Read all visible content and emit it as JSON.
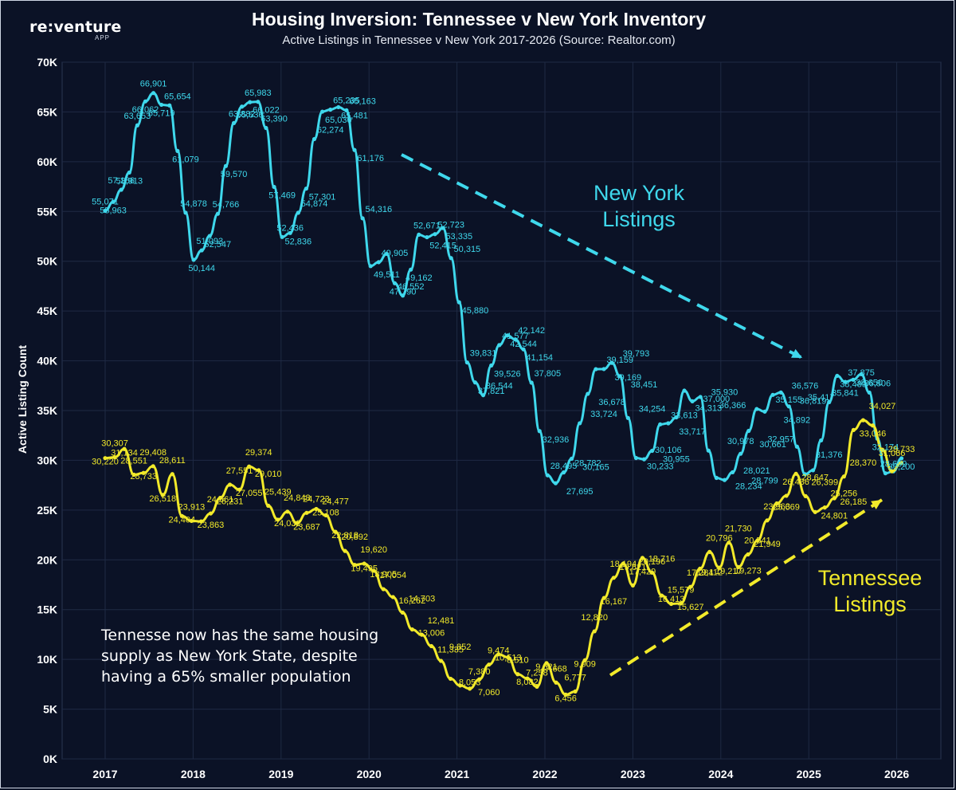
{
  "header": {
    "logo": "re:venture",
    "logo_sub": "APP",
    "title": "Housing Inversion: Tennessee v New York Inventory",
    "subtitle": "Active Listings in Tennessee v New York 2017-2026 (Source: Realtor.com)"
  },
  "annotations": {
    "ny_label_1": "New York",
    "ny_label_2": "Listings",
    "tn_label_1": "Tennessee",
    "tn_label_2": "Listings",
    "note": "Tennesse now has the same housing supply as New York State, despite having a 65% smaller population"
  },
  "colors": {
    "background": "#0b1226",
    "new_york": "#3fd8ec",
    "tennessee": "#f2ea2a",
    "grid": "#1f2a44"
  },
  "chart_data": {
    "type": "line",
    "title": "Housing Inversion: Tennessee v New York Inventory",
    "subtitle": "Active Listings in Tennessee v New York 2017-2026 (Source: Realtor.com)",
    "ylabel": "Active Listing Count",
    "xlabel": "",
    "ylim": [
      0,
      70000
    ],
    "yticks": [
      "0K",
      "5K",
      "10K",
      "15K",
      "20K",
      "25K",
      "30K",
      "35K",
      "40K",
      "45K",
      "50K",
      "55K",
      "60K",
      "65K",
      "70K"
    ],
    "xticks": [
      "2017",
      "2018",
      "2019",
      "2020",
      "2021",
      "2022",
      "2023",
      "2024",
      "2025",
      "2026"
    ],
    "x_start": "2017-01",
    "x_interval": "quarterly-ish monthly points",
    "grid": true,
    "series": [
      {
        "name": "New York",
        "values": [
          55071,
          55963,
          57186,
          58913,
          63653,
          66062,
          66901,
          65719,
          65654,
          61079,
          54878,
          50144,
          51093,
          52547,
          54766,
          59570,
          63882,
          65536,
          65983,
          66022,
          63390,
          57469,
          52436,
          52836,
          54874,
          57301,
          62274,
          65030,
          65235,
          65481,
          65163,
          61176,
          54316,
          49511,
          49905,
          50742,
          47790,
          46552,
          49162,
          52671,
          52415,
          52723,
          53335,
          50315,
          45880,
          39831,
          37821,
          36544,
          39526,
          41577,
          42544,
          42142,
          41154,
          37805,
          32936,
          28495,
          27695,
          28782,
          30165,
          33724,
          36678,
          39159,
          39169,
          39793,
          38451,
          34254,
          30233,
          30106,
          30955,
          33613,
          33717,
          34313,
          37000,
          35930,
          36366,
          30978,
          28234,
          28021,
          28799,
          30661,
          32957,
          35155,
          34892,
          36576,
          36819,
          35417,
          31376,
          28600,
          29000,
          32000,
          35841,
          38489,
          37875,
          38100,
          38650,
          36806,
          32174,
          28699,
          28900,
          30200
        ]
      },
      {
        "name": "Tennessee",
        "values": [
          30220,
          30307,
          31134,
          28551,
          28733,
          29408,
          26518,
          28611,
          24404,
          23913,
          23863,
          24661,
          26231,
          27551,
          27055,
          29374,
          29010,
          25439,
          24032,
          24843,
          23687,
          24723,
          25108,
          24477,
          22818,
          20892,
          19495,
          19620,
          18905,
          17054,
          16262,
          14703,
          13006,
          12481,
          11335,
          9852,
          8053,
          7380,
          7060,
          8000,
          9474,
          10513,
          10200,
          8510,
          8082,
          7258,
          9621,
          7668,
          6456,
          6777,
          9909,
          12820,
          16167,
          18194,
          19621,
          17429,
          20196,
          18716,
          16413,
          15579,
          15627,
          17284,
          19112,
          20796,
          19217,
          21730,
          19273,
          20541,
          21949,
          23963,
          25669,
          26436,
          28647,
          26399,
          24801,
          25256,
          26185,
          28370,
          33046,
          34027,
          33500,
          31066,
          28900,
          29733
        ]
      }
    ],
    "ny_labels": [
      "55,071",
      "55,963",
      "57,186",
      "58,913",
      "63,653",
      "66,062",
      "66,901",
      "65,719",
      "65,654",
      "61,079",
      "54,878",
      "50,144",
      "51,093",
      "52,547",
      "54,766",
      "59,570",
      "63,882",
      "65,536",
      "65,983",
      "66,022",
      "63,390",
      "57,469",
      "52,436",
      "52,836",
      "54,874",
      "57,301",
      "62,274",
      "65,030",
      "65,235",
      "65,481",
      "65,163",
      "61,176",
      "54,316",
      "49,511",
      "49,905",
      "47,790",
      "46,552",
      "49,162",
      "52,671",
      "52,415",
      "52,723",
      "53,335",
      "50,315",
      "45,880",
      "39,831",
      "37,821",
      "36,544",
      "39,526",
      "41,577",
      "42,544",
      "42,142",
      "41,154",
      "37,805",
      "32,936",
      "28,495",
      "27,695",
      "28,782",
      "30,165",
      "33,724",
      "36,678",
      "39,159",
      "39,169",
      "39,793",
      "38,451",
      "34,254",
      "30,233",
      "30,106",
      "30,955",
      "33,613",
      "33,717",
      "34,313",
      "37,000",
      "35,930",
      "36,366",
      "30,978",
      "28,234",
      "28,021",
      "28,799",
      "30,661",
      "32,957",
      "35,155",
      "34,892",
      "36,576",
      "36,819",
      "35,417",
      "31,376",
      "35,841",
      "38,489",
      "37,875",
      "38,650",
      "36,806",
      "32,174",
      "28,699",
      "30,200"
    ],
    "tn_labels": [
      "30,220",
      "30,307",
      "31,134",
      "28,551",
      "28,733",
      "29,408",
      "26,518",
      "28,611",
      "24,404",
      "23,913",
      "23,863",
      "24,661",
      "26,231",
      "27,551",
      "27,055",
      "29,374",
      "29,010",
      "25,439",
      "24,032",
      "24,843",
      "23,687",
      "24,723",
      "25,108",
      "24,477",
      "22,818",
      "20,892",
      "19,495",
      "19,620",
      "18,905",
      "17,054",
      "16,262",
      "14,703",
      "13,006",
      "12,481",
      "11,335",
      "9,852",
      "8,053",
      "7,380",
      "7,060",
      "9,474",
      "10,513",
      "8,510",
      "8,082",
      "7,258",
      "9,621",
      "7,668",
      "6,456",
      "6,777",
      "9,909",
      "12,820",
      "16,167",
      "18,194",
      "19,621",
      "17,429",
      "20,196",
      "18,716",
      "16,413",
      "15,579",
      "15,627",
      "17,284",
      "19,112",
      "20,796",
      "19,217",
      "21,730",
      "19,273",
      "20,541",
      "21,949",
      "23,963",
      "25,669",
      "26,436",
      "28,647",
      "26,399",
      "24,801",
      "25,256",
      "26,185",
      "28,370",
      "33,046",
      "34,027",
      "31,066",
      "29,733"
    ]
  }
}
